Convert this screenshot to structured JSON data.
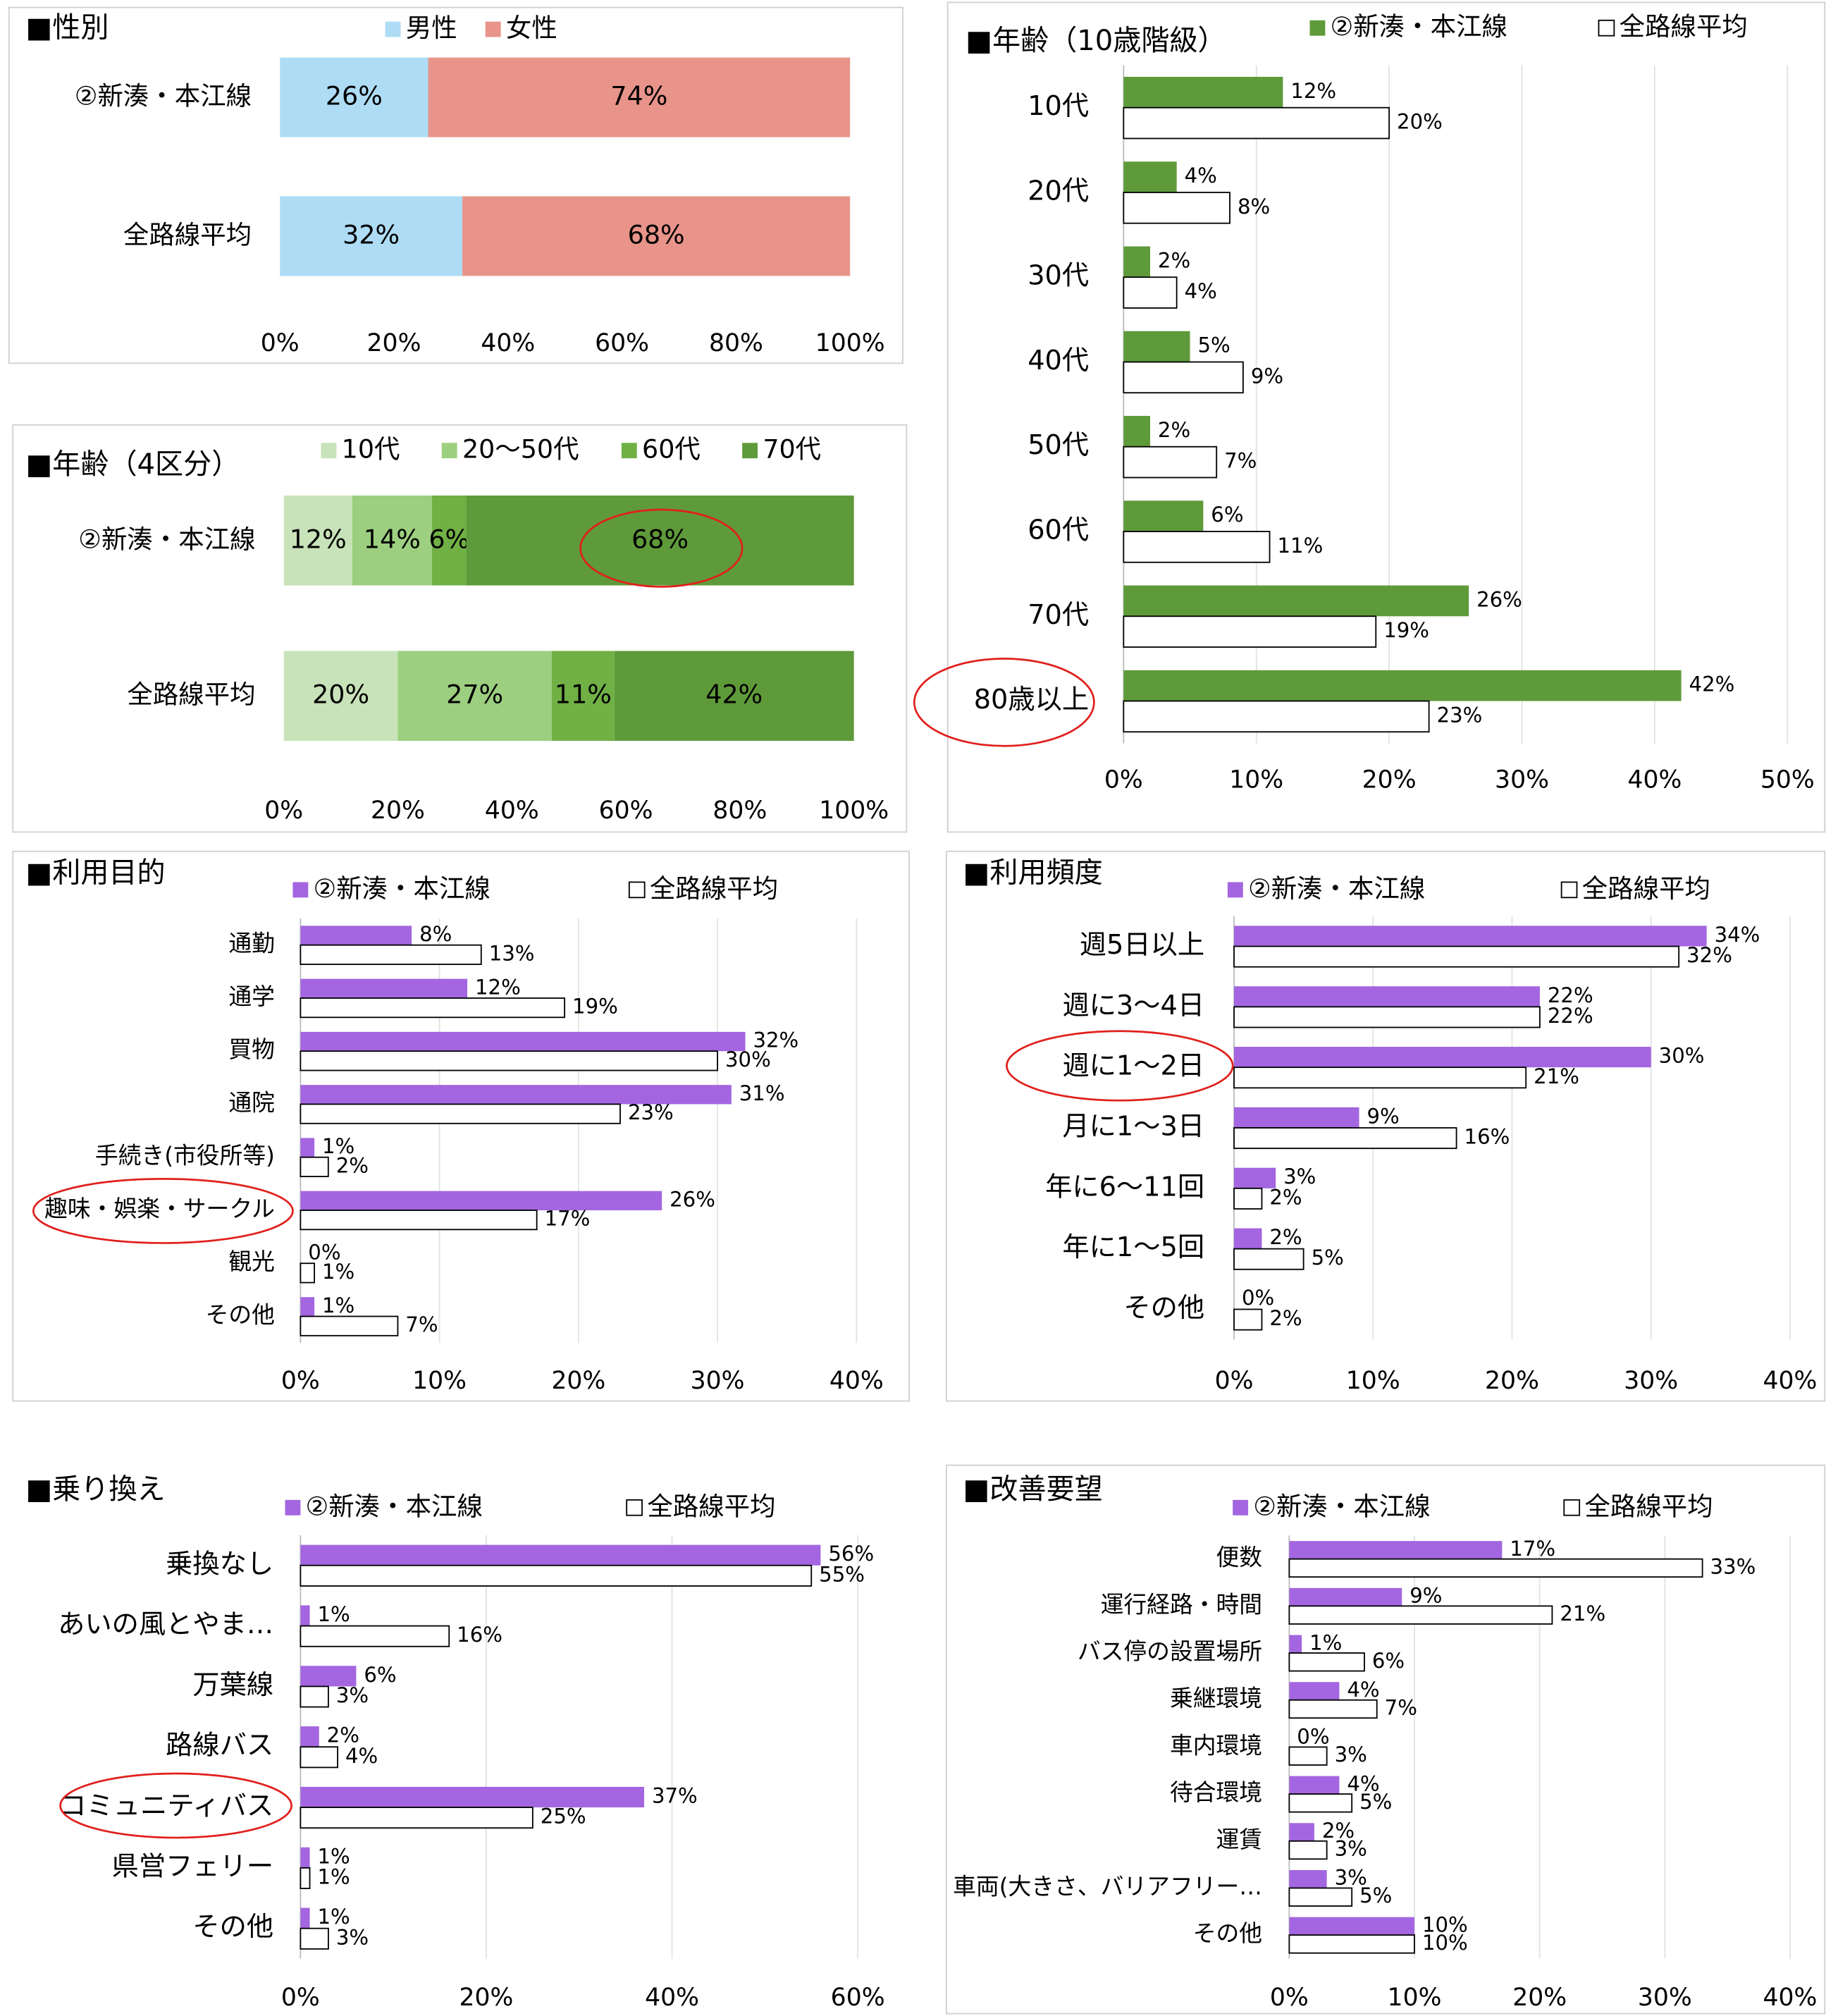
{
  "chart_data": [
    {
      "type": "stacked_bar",
      "title": "■性別",
      "categories": [
        "②新湊・本江線",
        "全路線平均"
      ],
      "series": [
        {
          "name": "男性",
          "color": "#aedcf5",
          "values": [
            26,
            32
          ],
          "value_labels": [
            "26%",
            "32%"
          ]
        },
        {
          "name": "女性",
          "color": "#e8948a",
          "values": [
            74,
            68
          ],
          "value_labels": [
            "74%",
            "68%"
          ]
        }
      ],
      "xlim": [
        0,
        100
      ],
      "xticks": [
        {
          "value": 0,
          "label": "0%"
        },
        {
          "value": 20,
          "label": "20%"
        },
        {
          "value": 40,
          "label": "40%"
        },
        {
          "value": 60,
          "label": "60%"
        },
        {
          "value": 80,
          "label": "80%"
        },
        {
          "value": 100,
          "label": "100%"
        }
      ],
      "grid": false
    },
    {
      "type": "stacked_bar",
      "title": "■年齢（4区分）",
      "categories": [
        "②新湊・本江線",
        "全路線平均"
      ],
      "series": [
        {
          "name": "10代",
          "color": "#c8e2b9",
          "values": [
            12,
            20
          ],
          "value_labels": [
            "12%",
            "20%"
          ]
        },
        {
          "name": "20～50代",
          "color": "#9ccf7f",
          "values": [
            14,
            27
          ],
          "value_labels": [
            "14%",
            "27%"
          ]
        },
        {
          "name": "60代",
          "color": "#70b045",
          "values": [
            6,
            11
          ],
          "value_labels": [
            "6%",
            "11%"
          ]
        },
        {
          "name": "70代",
          "color": "#5f9a3a",
          "values": [
            68,
            42
          ],
          "value_labels": [
            "68%",
            "42%"
          ]
        }
      ],
      "xlim": [
        0,
        100
      ],
      "xticks": [
        {
          "value": 0,
          "label": "0%"
        },
        {
          "value": 20,
          "label": "20%"
        },
        {
          "value": 40,
          "label": "40%"
        },
        {
          "value": 60,
          "label": "60%"
        },
        {
          "value": 80,
          "label": "80%"
        },
        {
          "value": 100,
          "label": "100%"
        }
      ],
      "grid": false
    },
    {
      "type": "grouped_bar",
      "title": "■年齢（10歳階級）",
      "categories": [
        "10代",
        "20代",
        "30代",
        "40代",
        "50代",
        "60代",
        "70代",
        "80歳以上"
      ],
      "series": [
        {
          "name": "②新湊・本江線",
          "color": "#5f9a3a",
          "values": [
            12,
            4,
            2,
            5,
            2,
            6,
            26,
            42
          ],
          "value_labels": [
            "12%",
            "4%",
            "2%",
            "5%",
            "2%",
            "6%",
            "26%",
            "42%"
          ]
        },
        {
          "name": "全路線平均",
          "color": "#ffffff",
          "values": [
            20,
            8,
            4,
            9,
            7,
            11,
            19,
            23
          ],
          "value_labels": [
            "20%",
            "8%",
            "4%",
            "9%",
            "7%",
            "11%",
            "19%",
            "23%"
          ]
        }
      ],
      "xlim": [
        0,
        50
      ],
      "xticks": [
        {
          "value": 0,
          "label": "0%"
        },
        {
          "value": 10,
          "label": "10%"
        },
        {
          "value": 20,
          "label": "20%"
        },
        {
          "value": 30,
          "label": "30%"
        },
        {
          "value": 40,
          "label": "40%"
        },
        {
          "value": 50,
          "label": "50%"
        }
      ],
      "grid": true
    },
    {
      "type": "grouped_bar",
      "title": "■利用目的",
      "categories": [
        "通勤",
        "通学",
        "買物",
        "通院",
        "手続き(市役所等)",
        "趣味・娯楽・サークル",
        "観光",
        "その他"
      ],
      "series": [
        {
          "name": "②新湊・本江線",
          "color": "#a366e0",
          "values": [
            8,
            12,
            32,
            31,
            1,
            26,
            0,
            1
          ],
          "value_labels": [
            "8%",
            "12%",
            "32%",
            "31%",
            "1%",
            "26%",
            "0%",
            "1%"
          ]
        },
        {
          "name": "全路線平均",
          "color": "#ffffff",
          "values": [
            13,
            19,
            30,
            23,
            2,
            17,
            1,
            7
          ],
          "value_labels": [
            "13%",
            "19%",
            "30%",
            "23%",
            "2%",
            "17%",
            "1%",
            "7%"
          ]
        }
      ],
      "xlim": [
        0,
        40
      ],
      "xticks": [
        {
          "value": 0,
          "label": "0%"
        },
        {
          "value": 10,
          "label": "10%"
        },
        {
          "value": 20,
          "label": "20%"
        },
        {
          "value": 30,
          "label": "30%"
        },
        {
          "value": 40,
          "label": "40%"
        }
      ],
      "grid": true
    },
    {
      "type": "grouped_bar",
      "title": "■利用頻度",
      "categories": [
        "週5日以上",
        "週に3～4日",
        "週に1～2日",
        "月に1～3日",
        "年に6～11回",
        "年に1～5回",
        "その他"
      ],
      "series": [
        {
          "name": "②新湊・本江線",
          "color": "#a366e0",
          "values": [
            34,
            22,
            30,
            9,
            3,
            2,
            0
          ],
          "value_labels": [
            "34%",
            "22%",
            "30%",
            "9%",
            "3%",
            "2%",
            "0%"
          ]
        },
        {
          "name": "全路線平均",
          "color": "#ffffff",
          "values": [
            32,
            22,
            21,
            16,
            2,
            5,
            2
          ],
          "value_labels": [
            "32%",
            "22%",
            "21%",
            "16%",
            "2%",
            "5%",
            "2%"
          ]
        }
      ],
      "xlim": [
        0,
        40
      ],
      "xticks": [
        {
          "value": 0,
          "label": "0%"
        },
        {
          "value": 10,
          "label": "10%"
        },
        {
          "value": 20,
          "label": "20%"
        },
        {
          "value": 30,
          "label": "30%"
        },
        {
          "value": 40,
          "label": "40%"
        }
      ],
      "grid": true
    },
    {
      "type": "grouped_bar",
      "title": "■乗り換え",
      "categories": [
        "乗換なし",
        "あいの風とやま…",
        "万葉線",
        "路線バス",
        "コミュニティバス",
        "県営フェリー",
        "その他"
      ],
      "series": [
        {
          "name": "②新湊・本江線",
          "color": "#a366e0",
          "values": [
            56,
            1,
            6,
            2,
            37,
            1,
            1
          ],
          "value_labels": [
            "56%",
            "1%",
            "6%",
            "2%",
            "37%",
            "1%",
            "1%"
          ]
        },
        {
          "name": "全路線平均",
          "color": "#ffffff",
          "values": [
            55,
            16,
            3,
            4,
            25,
            1,
            3
          ],
          "value_labels": [
            "55%",
            "16%",
            "3%",
            "4%",
            "25%",
            "1%",
            "3%"
          ]
        }
      ],
      "xlim": [
        0,
        60
      ],
      "xticks": [
        {
          "value": 0,
          "label": "0%"
        },
        {
          "value": 20,
          "label": "20%"
        },
        {
          "value": 40,
          "label": "40%"
        },
        {
          "value": 60,
          "label": "60%"
        }
      ],
      "grid": true
    },
    {
      "type": "grouped_bar",
      "title": "■改善要望",
      "categories": [
        "便数",
        "運行経路・時間",
        "バス停の設置場所",
        "乗継環境",
        "車内環境",
        "待合環境",
        "運賃",
        "車両(大きさ、バリアフリー…",
        "その他"
      ],
      "series": [
        {
          "name": "②新湊・本江線",
          "color": "#a366e0",
          "values": [
            17,
            9,
            1,
            4,
            0,
            4,
            2,
            3,
            10
          ],
          "value_labels": [
            "17%",
            "9%",
            "1%",
            "4%",
            "0%",
            "4%",
            "2%",
            "3%",
            "10%"
          ]
        },
        {
          "name": "全路線平均",
          "color": "#ffffff",
          "values": [
            33,
            21,
            6,
            7,
            3,
            5,
            3,
            5,
            10
          ],
          "value_labels": [
            "33%",
            "21%",
            "6%",
            "7%",
            "3%",
            "5%",
            "3%",
            "5%",
            "10%"
          ]
        }
      ],
      "xlim": [
        0,
        40
      ],
      "xticks": [
        {
          "value": 0,
          "label": "0%"
        },
        {
          "value": 10,
          "label": "10%"
        },
        {
          "value": 20,
          "label": "20%"
        },
        {
          "value": 30,
          "label": "30%"
        },
        {
          "value": 40,
          "label": "40%"
        }
      ],
      "grid": true
    }
  ]
}
